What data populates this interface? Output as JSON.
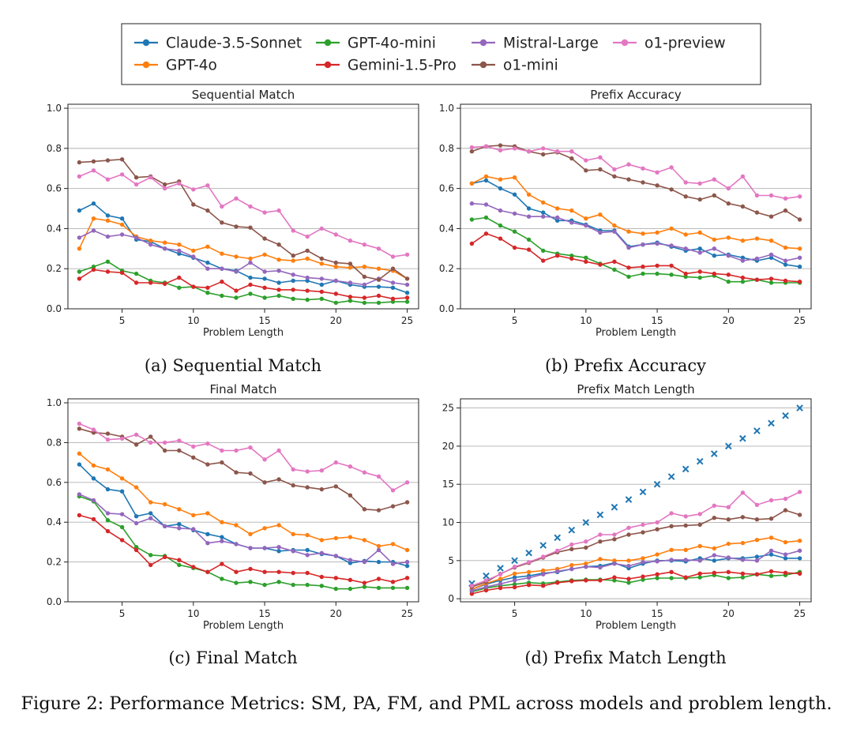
{
  "figure_caption": "Figure 2: Performance Metrics: SM, PA, FM, and PML across models and problem length.",
  "subcaptions": [
    "(a) Sequential Match",
    "(b) Prefix Accuracy",
    "(c) Final Match",
    "(d) Prefix Match Length"
  ],
  "legend": [
    {
      "name": "Claude-3.5-Sonnet",
      "color": "#1f77b4"
    },
    {
      "name": "GPT-4o",
      "color": "#ff7f0e"
    },
    {
      "name": "GPT-4o-mini",
      "color": "#2ca02c"
    },
    {
      "name": "Gemini-1.5-Pro",
      "color": "#d62728"
    },
    {
      "name": "Mistral-Large",
      "color": "#9467bd"
    },
    {
      "name": "o1-mini",
      "color": "#8c564b"
    },
    {
      "name": "o1-preview",
      "color": "#e377c2"
    }
  ],
  "chart_data": [
    {
      "type": "line",
      "title": "Sequential Match",
      "xlabel": "Problem Length",
      "ylabel": "",
      "x": [
        2,
        3,
        4,
        5,
        6,
        7,
        8,
        9,
        10,
        11,
        12,
        13,
        14,
        15,
        16,
        17,
        18,
        19,
        20,
        21,
        22,
        23,
        24,
        25
      ],
      "xlim": [
        1.2,
        25.8
      ],
      "ylim": [
        0,
        1.02
      ],
      "xticks": [
        5,
        10,
        15,
        20,
        25
      ],
      "yticks": [
        0.0,
        0.2,
        0.4,
        0.6,
        0.8,
        1.0
      ],
      "ytick_labels": [
        "0.0",
        "0.2",
        "0.4",
        "0.6",
        "0.8",
        "1.0"
      ],
      "series": [
        {
          "name": "Claude-3.5-Sonnet",
          "values": [
            0.49,
            0.525,
            0.465,
            0.45,
            0.345,
            0.335,
            0.3,
            0.275,
            0.255,
            0.23,
            0.2,
            0.19,
            0.155,
            0.15,
            0.13,
            0.14,
            0.14,
            0.12,
            0.14,
            0.12,
            0.11,
            0.11,
            0.105,
            0.08
          ]
        },
        {
          "name": "GPT-4o",
          "values": [
            0.3,
            0.45,
            0.44,
            0.42,
            0.36,
            0.34,
            0.33,
            0.32,
            0.29,
            0.31,
            0.275,
            0.26,
            0.25,
            0.27,
            0.245,
            0.24,
            0.25,
            0.225,
            0.21,
            0.205,
            0.21,
            0.2,
            0.19,
            0.15
          ]
        },
        {
          "name": "GPT-4o-mini",
          "values": [
            0.185,
            0.21,
            0.235,
            0.19,
            0.175,
            0.14,
            0.13,
            0.105,
            0.11,
            0.08,
            0.065,
            0.055,
            0.075,
            0.055,
            0.065,
            0.05,
            0.045,
            0.05,
            0.03,
            0.04,
            0.03,
            0.03,
            0.035,
            0.035
          ]
        },
        {
          "name": "Gemini-1.5-Pro",
          "values": [
            0.15,
            0.195,
            0.185,
            0.18,
            0.13,
            0.13,
            0.125,
            0.155,
            0.11,
            0.105,
            0.135,
            0.09,
            0.12,
            0.105,
            0.095,
            0.095,
            0.09,
            0.085,
            0.075,
            0.06,
            0.055,
            0.065,
            0.05,
            0.055
          ]
        },
        {
          "name": "Mistral-Large",
          "values": [
            0.355,
            0.39,
            0.36,
            0.37,
            0.355,
            0.32,
            0.3,
            0.29,
            0.26,
            0.2,
            0.2,
            0.185,
            0.23,
            0.185,
            0.19,
            0.17,
            0.155,
            0.15,
            0.14,
            0.13,
            0.12,
            0.15,
            0.13,
            0.12
          ]
        },
        {
          "name": "o1-mini",
          "values": [
            0.73,
            0.735,
            0.74,
            0.745,
            0.655,
            0.66,
            0.62,
            0.635,
            0.52,
            0.49,
            0.43,
            0.41,
            0.405,
            0.35,
            0.32,
            0.265,
            0.29,
            0.25,
            0.23,
            0.225,
            0.16,
            0.145,
            0.2,
            0.15
          ]
        },
        {
          "name": "o1-preview",
          "values": [
            0.66,
            0.69,
            0.645,
            0.67,
            0.62,
            0.655,
            0.6,
            0.625,
            0.595,
            0.615,
            0.51,
            0.55,
            0.51,
            0.48,
            0.49,
            0.39,
            0.36,
            0.4,
            0.37,
            0.34,
            0.32,
            0.3,
            0.26,
            0.27
          ]
        }
      ]
    },
    {
      "type": "line",
      "title": "Prefix Accuracy",
      "xlabel": "Problem Length",
      "ylabel": "",
      "x": [
        2,
        3,
        4,
        5,
        6,
        7,
        8,
        9,
        10,
        11,
        12,
        13,
        14,
        15,
        16,
        17,
        18,
        19,
        20,
        21,
        22,
        23,
        24,
        25
      ],
      "xlim": [
        1.2,
        25.8
      ],
      "ylim": [
        0,
        1.02
      ],
      "xticks": [
        5,
        10,
        15,
        20,
        25
      ],
      "yticks": [
        0.0,
        0.2,
        0.4,
        0.6,
        0.8,
        1.0
      ],
      "ytick_labels": [
        "0.0",
        "0.2",
        "0.4",
        "0.6",
        "0.8",
        "1.0"
      ],
      "series": [
        {
          "name": "Claude-3.5-Sonnet",
          "values": [
            0.625,
            0.64,
            0.6,
            0.57,
            0.5,
            0.48,
            0.44,
            0.44,
            0.42,
            0.39,
            0.39,
            0.31,
            0.32,
            0.33,
            0.31,
            0.29,
            0.3,
            0.265,
            0.27,
            0.255,
            0.24,
            0.255,
            0.22,
            0.21
          ]
        },
        {
          "name": "GPT-4o",
          "values": [
            0.625,
            0.66,
            0.645,
            0.655,
            0.57,
            0.53,
            0.5,
            0.49,
            0.45,
            0.47,
            0.415,
            0.385,
            0.375,
            0.38,
            0.4,
            0.37,
            0.38,
            0.345,
            0.355,
            0.34,
            0.35,
            0.34,
            0.305,
            0.3
          ]
        },
        {
          "name": "GPT-4o-mini",
          "values": [
            0.445,
            0.455,
            0.415,
            0.385,
            0.345,
            0.29,
            0.275,
            0.265,
            0.255,
            0.225,
            0.195,
            0.16,
            0.175,
            0.175,
            0.17,
            0.16,
            0.155,
            0.165,
            0.135,
            0.135,
            0.145,
            0.13,
            0.13,
            0.13
          ]
        },
        {
          "name": "Gemini-1.5-Pro",
          "values": [
            0.325,
            0.375,
            0.35,
            0.305,
            0.295,
            0.24,
            0.265,
            0.25,
            0.235,
            0.22,
            0.235,
            0.205,
            0.21,
            0.215,
            0.215,
            0.175,
            0.185,
            0.175,
            0.17,
            0.155,
            0.145,
            0.15,
            0.14,
            0.135
          ]
        },
        {
          "name": "Mistral-Large",
          "values": [
            0.525,
            0.52,
            0.49,
            0.475,
            0.46,
            0.46,
            0.455,
            0.43,
            0.415,
            0.38,
            0.385,
            0.305,
            0.32,
            0.325,
            0.315,
            0.3,
            0.28,
            0.3,
            0.265,
            0.24,
            0.25,
            0.27,
            0.24,
            0.255
          ]
        },
        {
          "name": "o1-mini",
          "values": [
            0.785,
            0.81,
            0.815,
            0.81,
            0.785,
            0.77,
            0.78,
            0.75,
            0.69,
            0.695,
            0.66,
            0.645,
            0.63,
            0.615,
            0.595,
            0.56,
            0.545,
            0.565,
            0.525,
            0.51,
            0.48,
            0.46,
            0.49,
            0.445
          ]
        },
        {
          "name": "o1-preview",
          "values": [
            0.805,
            0.81,
            0.79,
            0.8,
            0.785,
            0.8,
            0.785,
            0.785,
            0.74,
            0.755,
            0.695,
            0.72,
            0.7,
            0.68,
            0.705,
            0.63,
            0.625,
            0.645,
            0.6,
            0.66,
            0.565,
            0.565,
            0.55,
            0.56
          ]
        }
      ]
    },
    {
      "type": "line",
      "title": "Final Match",
      "xlabel": "Problem Length",
      "ylabel": "",
      "x": [
        2,
        3,
        4,
        5,
        6,
        7,
        8,
        9,
        10,
        11,
        12,
        13,
        14,
        15,
        16,
        17,
        18,
        19,
        20,
        21,
        22,
        23,
        24,
        25
      ],
      "xlim": [
        1.2,
        25.8
      ],
      "ylim": [
        0,
        1.02
      ],
      "xticks": [
        5,
        10,
        15,
        20,
        25
      ],
      "yticks": [
        0.0,
        0.2,
        0.4,
        0.6,
        0.8,
        1.0
      ],
      "ytick_labels": [
        "0.0",
        "0.2",
        "0.4",
        "0.6",
        "0.8",
        "1.0"
      ],
      "series": [
        {
          "name": "Claude-3.5-Sonnet",
          "values": [
            0.69,
            0.62,
            0.565,
            0.555,
            0.43,
            0.445,
            0.38,
            0.39,
            0.36,
            0.34,
            0.325,
            0.29,
            0.27,
            0.27,
            0.255,
            0.26,
            0.26,
            0.24,
            0.23,
            0.195,
            0.205,
            0.2,
            0.2,
            0.18
          ]
        },
        {
          "name": "GPT-4o",
          "values": [
            0.745,
            0.685,
            0.665,
            0.62,
            0.575,
            0.5,
            0.49,
            0.465,
            0.435,
            0.445,
            0.4,
            0.385,
            0.34,
            0.37,
            0.385,
            0.34,
            0.335,
            0.31,
            0.32,
            0.325,
            0.31,
            0.28,
            0.29,
            0.26
          ]
        },
        {
          "name": "GPT-4o-mini",
          "values": [
            0.53,
            0.505,
            0.41,
            0.375,
            0.275,
            0.235,
            0.23,
            0.185,
            0.17,
            0.15,
            0.115,
            0.095,
            0.1,
            0.085,
            0.1,
            0.085,
            0.085,
            0.08,
            0.065,
            0.065,
            0.075,
            0.07,
            0.07,
            0.07
          ]
        },
        {
          "name": "Gemini-1.5-Pro",
          "values": [
            0.435,
            0.415,
            0.355,
            0.31,
            0.26,
            0.185,
            0.225,
            0.21,
            0.175,
            0.15,
            0.19,
            0.15,
            0.165,
            0.15,
            0.15,
            0.145,
            0.145,
            0.125,
            0.12,
            0.11,
            0.095,
            0.115,
            0.1,
            0.12
          ]
        },
        {
          "name": "Mistral-Large",
          "values": [
            0.54,
            0.51,
            0.445,
            0.44,
            0.395,
            0.42,
            0.38,
            0.37,
            0.365,
            0.295,
            0.305,
            0.29,
            0.27,
            0.27,
            0.275,
            0.255,
            0.235,
            0.245,
            0.23,
            0.21,
            0.2,
            0.26,
            0.19,
            0.2
          ]
        },
        {
          "name": "o1-mini",
          "values": [
            0.87,
            0.85,
            0.845,
            0.83,
            0.79,
            0.83,
            0.76,
            0.76,
            0.725,
            0.69,
            0.7,
            0.65,
            0.645,
            0.6,
            0.615,
            0.585,
            0.575,
            0.565,
            0.58,
            0.535,
            0.465,
            0.46,
            0.48,
            0.5
          ]
        },
        {
          "name": "o1-preview",
          "values": [
            0.895,
            0.865,
            0.815,
            0.82,
            0.84,
            0.8,
            0.8,
            0.81,
            0.78,
            0.795,
            0.76,
            0.76,
            0.775,
            0.715,
            0.76,
            0.665,
            0.655,
            0.66,
            0.7,
            0.68,
            0.65,
            0.63,
            0.56,
            0.6
          ]
        }
      ]
    },
    {
      "type": "line",
      "title": "Prefix Match Length",
      "xlabel": "Problem Length",
      "ylabel": "",
      "x": [
        2,
        3,
        4,
        5,
        6,
        7,
        8,
        9,
        10,
        11,
        12,
        13,
        14,
        15,
        16,
        17,
        18,
        19,
        20,
        21,
        22,
        23,
        24,
        25
      ],
      "xlim": [
        1.2,
        25.8
      ],
      "ylim": [
        -0.4,
        26.2
      ],
      "xticks": [
        5,
        10,
        15,
        20,
        25
      ],
      "yticks": [
        0,
        5,
        10,
        15,
        20,
        25
      ],
      "ytick_labels": [
        "0",
        "5",
        "10",
        "15",
        "20",
        "25"
      ],
      "reference": {
        "name": "x",
        "marker": "x",
        "color": "#1f77b4",
        "values": [
          2,
          3,
          4,
          5,
          6,
          7,
          8,
          9,
          10,
          11,
          12,
          13,
          14,
          15,
          16,
          17,
          18,
          19,
          20,
          21,
          22,
          23,
          24,
          25
        ]
      },
      "series": [
        {
          "name": "Claude-3.5-Sonnet",
          "values": [
            1.25,
            1.9,
            2.4,
            2.8,
            3.0,
            3.35,
            3.5,
            3.9,
            4.2,
            4.3,
            4.7,
            4.0,
            4.6,
            5.0,
            5.0,
            4.9,
            5.3,
            5.0,
            5.3,
            5.3,
            5.5,
            5.8,
            5.3,
            5.3
          ]
        },
        {
          "name": "GPT-4o",
          "values": [
            1.25,
            2.0,
            2.6,
            3.3,
            3.5,
            3.7,
            3.9,
            4.4,
            4.6,
            5.2,
            5.0,
            5.0,
            5.3,
            5.8,
            6.4,
            6.4,
            6.9,
            6.6,
            7.2,
            7.3,
            7.7,
            8.0,
            7.4,
            7.6
          ]
        },
        {
          "name": "GPT-4o-mini",
          "values": [
            0.9,
            1.4,
            1.7,
            1.9,
            2.1,
            2.0,
            2.2,
            2.4,
            2.5,
            2.5,
            2.4,
            2.1,
            2.5,
            2.7,
            2.7,
            2.7,
            2.8,
            3.1,
            2.7,
            2.8,
            3.2,
            3.0,
            3.1,
            3.5
          ]
        },
        {
          "name": "Gemini-1.5-Pro",
          "values": [
            0.65,
            1.1,
            1.4,
            1.5,
            1.8,
            1.7,
            2.1,
            2.3,
            2.4,
            2.4,
            2.8,
            2.6,
            2.9,
            3.2,
            3.5,
            2.8,
            3.3,
            3.4,
            3.5,
            3.3,
            3.2,
            3.6,
            3.4,
            3.3
          ]
        },
        {
          "name": "Mistral-Large",
          "values": [
            1.05,
            1.55,
            1.95,
            2.4,
            2.75,
            3.2,
            3.6,
            3.9,
            4.2,
            4.1,
            4.6,
            4.3,
            4.8,
            4.9,
            5.1,
            5.1,
            5.0,
            5.7,
            5.4,
            5.1,
            5.0,
            6.3,
            5.8,
            6.3
          ]
        },
        {
          "name": "o1-mini",
          "values": [
            1.55,
            2.2,
            3.25,
            4.1,
            4.7,
            5.4,
            6.1,
            6.5,
            6.7,
            7.5,
            7.8,
            8.4,
            8.7,
            9.1,
            9.5,
            9.6,
            9.7,
            10.6,
            10.4,
            10.7,
            10.4,
            10.5,
            11.6,
            11.0
          ]
        },
        {
          "name": "o1-preview",
          "values": [
            1.7,
            2.4,
            3.2,
            4.2,
            4.8,
            5.5,
            6.3,
            7.1,
            7.5,
            8.4,
            8.4,
            9.3,
            9.7,
            10.0,
            11.2,
            10.8,
            11.1,
            12.2,
            12.0,
            13.9,
            12.3,
            12.9,
            13.1,
            14.0
          ]
        }
      ]
    }
  ]
}
